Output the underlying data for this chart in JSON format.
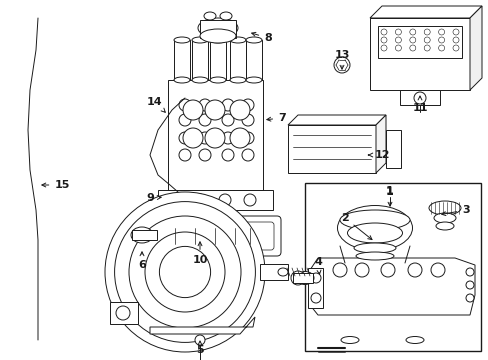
{
  "bg_color": "#ffffff",
  "line_color": "#1a1a1a",
  "figsize": [
    4.89,
    3.6
  ],
  "dpi": 100,
  "lw": 0.7,
  "label_fs": 8.0
}
